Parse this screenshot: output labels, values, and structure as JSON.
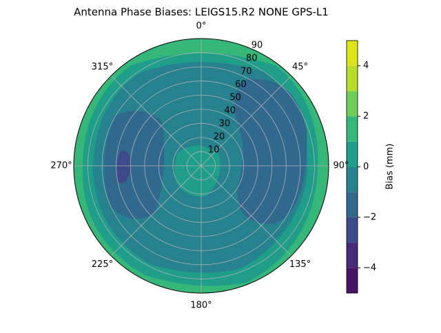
{
  "chart_data": {
    "type": "polar_contour",
    "title": "Antenna Phase Biases: LEIGS15.R2       NONE GPS-L1",
    "rlim": [
      0,
      90
    ],
    "rticks": [
      10,
      20,
      30,
      40,
      50,
      60,
      70,
      80,
      90
    ],
    "thetaticks": [
      {
        "value": 0,
        "label": "0°"
      },
      {
        "value": 45,
        "label": "45°"
      },
      {
        "value": 90,
        "label": "90°"
      },
      {
        "value": 135,
        "label": "135°"
      },
      {
        "value": 180,
        "label": "180°"
      },
      {
        "value": 225,
        "label": "225°"
      },
      {
        "value": 270,
        "label": "270°"
      },
      {
        "value": 315,
        "label": "315°"
      }
    ],
    "grid": true,
    "colorbar_label": "Bias (mm)",
    "clim": [
      -5,
      5
    ],
    "levels": [
      -5,
      -4,
      -3,
      -2,
      -1,
      0,
      1,
      2,
      3,
      4,
      5
    ],
    "colors": [
      "#471365",
      "#482878",
      "#3e4989",
      "#31688e",
      "#26828e",
      "#1f9e89",
      "#35b779",
      "#6ece58",
      "#b5de2b",
      "#dde318"
    ],
    "cticks": [
      {
        "value": -4,
        "label": "−4"
      },
      {
        "value": -2,
        "label": "−2"
      },
      {
        "value": 0,
        "label": "0"
      },
      {
        "value": 2,
        "label": "2"
      },
      {
        "value": 4,
        "label": "4"
      }
    ]
  }
}
